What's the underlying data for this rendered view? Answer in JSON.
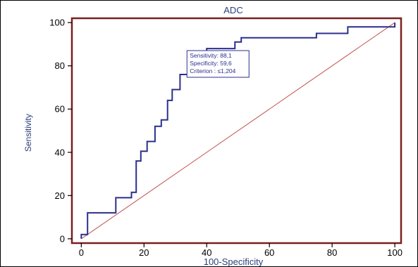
{
  "chart_data": {
    "type": "line",
    "title": "ADC",
    "xlabel": "100-Specificity",
    "ylabel": "Sensitivity",
    "xlim": [
      -3,
      102
    ],
    "ylim": [
      -2,
      102
    ],
    "x_ticks": [
      0,
      20,
      40,
      60,
      80,
      100
    ],
    "y_ticks": [
      0,
      20,
      40,
      60,
      80,
      100
    ],
    "grid": false,
    "series": [
      {
        "style": "step",
        "color": "#2b2f8c",
        "points": [
          [
            0,
            0
          ],
          [
            0,
            2
          ],
          [
            2,
            2
          ],
          [
            2,
            12
          ],
          [
            11,
            12
          ],
          [
            11,
            19
          ],
          [
            16,
            19
          ],
          [
            16,
            21.5
          ],
          [
            17.5,
            21.5
          ],
          [
            17.5,
            36
          ],
          [
            19,
            36
          ],
          [
            19,
            40.5
          ],
          [
            21,
            40.5
          ],
          [
            21,
            45
          ],
          [
            23.5,
            45
          ],
          [
            23.5,
            52
          ],
          [
            25.5,
            52
          ],
          [
            25.5,
            55
          ],
          [
            27.5,
            55
          ],
          [
            27.5,
            64
          ],
          [
            29,
            64
          ],
          [
            29,
            69
          ],
          [
            31.5,
            69
          ],
          [
            31.5,
            76
          ],
          [
            36,
            76
          ],
          [
            36,
            78.5
          ],
          [
            40,
            78.5
          ],
          [
            40,
            88
          ],
          [
            49,
            88
          ],
          [
            49,
            91
          ],
          [
            51,
            91
          ],
          [
            51,
            93
          ],
          [
            75,
            93
          ],
          [
            75,
            95
          ],
          [
            85,
            95
          ],
          [
            85,
            98
          ],
          [
            100,
            98
          ],
          [
            100,
            100
          ]
        ]
      },
      {
        "style": "reference",
        "color": "#c0504d",
        "points": [
          [
            0,
            0
          ],
          [
            100,
            100
          ]
        ]
      }
    ],
    "annotation": {
      "lines": [
        "Sensitivity: 88,1",
        "Specificity: 59,6",
        "Criterion : ≤1,204"
      ],
      "anchor": [
        40,
        88
      ]
    },
    "colors": {
      "plot_border": "#7b1f1f",
      "roc_line": "#2b2f8c",
      "diagonal": "#c0504d",
      "label_text": "#2c3e7a"
    }
  }
}
